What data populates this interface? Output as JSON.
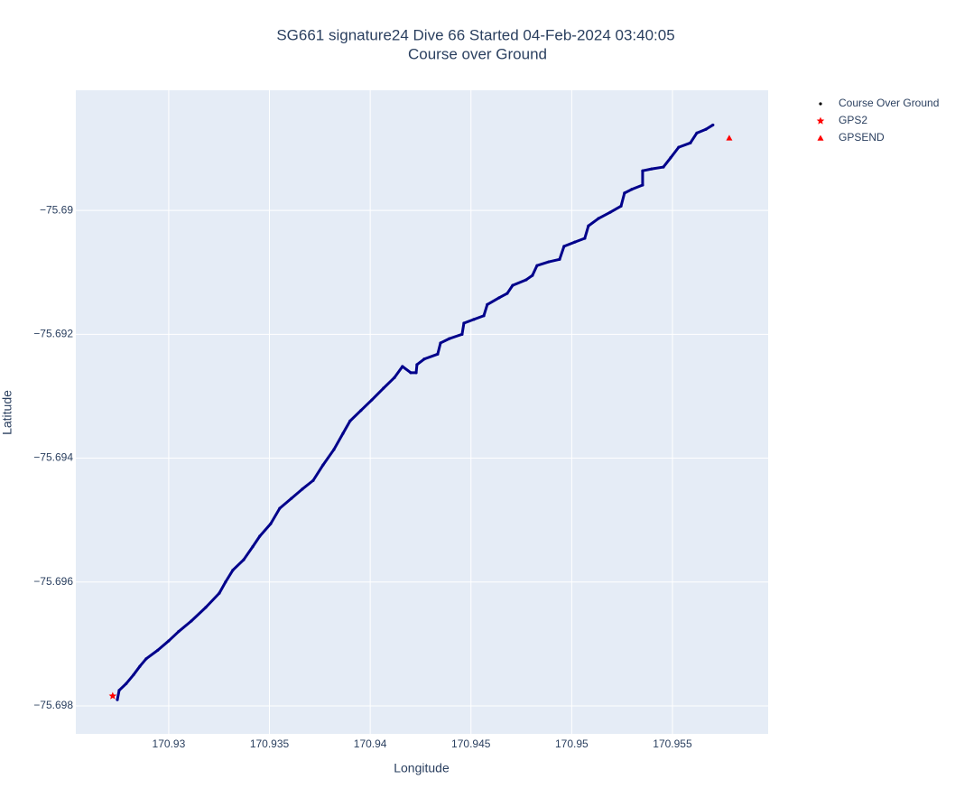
{
  "chart_data": {
    "type": "scatter",
    "title": "SG661 signature24 Dive 66 Started 04-Feb-2024 03:40:05",
    "subtitle": "Course over Ground",
    "x_label": "Longitude",
    "y_label": "Latitude",
    "xlim": [
      170.92539,
      170.95975
    ],
    "ylim": [
      -75.698452,
      -75.68806
    ],
    "xticks": [
      170.93,
      170.935,
      170.94,
      170.945,
      170.95,
      170.955
    ],
    "yticks": [
      {
        "value": -75.69,
        "label": "−75.69"
      },
      {
        "value": -75.692,
        "label": "−75.692"
      },
      {
        "value": -75.694,
        "label": "−75.694"
      },
      {
        "value": -75.696,
        "label": "−75.696"
      },
      {
        "value": -75.698,
        "label": "−75.698"
      }
    ],
    "grid": true,
    "legend": "right",
    "series": [
      {
        "name": "Course Over Ground",
        "color": "#00008b",
        "symbol": "circle",
        "x": [
          170.92745,
          170.92754,
          170.92789,
          170.92825,
          170.92857,
          170.92888,
          170.92946,
          170.93,
          170.93049,
          170.93112,
          170.93184,
          170.93251,
          170.93282,
          170.93318,
          170.93372,
          170.93417,
          170.93452,
          170.93506,
          170.93551,
          170.93609,
          170.93663,
          170.93717,
          170.93766,
          170.9382,
          170.93865,
          170.939,
          170.93954,
          170.94008,
          170.94066,
          170.9412,
          170.9416,
          170.94201,
          170.94228,
          170.94232,
          170.94268,
          170.94335,
          170.94349,
          170.94393,
          170.94456,
          170.94465,
          170.94514,
          170.94564,
          170.94581,
          170.9464,
          170.9468,
          170.94707,
          170.94774,
          170.94805,
          170.94828,
          170.94886,
          170.9494,
          170.94962,
          170.95016,
          170.95065,
          170.95083,
          170.95133,
          170.95191,
          170.95245,
          170.95262,
          170.95298,
          170.95352,
          170.95352,
          170.95397,
          170.95455,
          170.95491,
          170.95531,
          170.95589,
          170.95621,
          170.95666,
          170.95701
        ],
        "y": [
          -75.6979,
          -75.69775,
          -75.69764,
          -75.6975,
          -75.69736,
          -75.69724,
          -75.6971,
          -75.69695,
          -75.6968,
          -75.69663,
          -75.69641,
          -75.69618,
          -75.696,
          -75.69581,
          -75.69564,
          -75.69543,
          -75.69526,
          -75.69506,
          -75.69481,
          -75.69465,
          -75.6945,
          -75.69436,
          -75.69411,
          -75.69386,
          -75.6936,
          -75.6934,
          -75.69323,
          -75.69306,
          -75.69287,
          -75.6927,
          -75.69252,
          -75.69262,
          -75.69262,
          -75.69249,
          -75.6924,
          -75.69232,
          -75.69214,
          -75.69207,
          -75.692,
          -75.69182,
          -75.69176,
          -75.6917,
          -75.69152,
          -75.69141,
          -75.69134,
          -75.69121,
          -75.69112,
          -75.69105,
          -75.69089,
          -75.69083,
          -75.69079,
          -75.69058,
          -75.69051,
          -75.69045,
          -75.69025,
          -75.69013,
          -75.69003,
          -75.68993,
          -75.68972,
          -75.68966,
          -75.68959,
          -75.68936,
          -75.68933,
          -75.6893,
          -75.68915,
          -75.68898,
          -75.68891,
          -75.68875,
          -75.68869,
          -75.68862
        ]
      },
      {
        "name": "GPS2",
        "color": "#ff0000",
        "symbol": "star",
        "x": [
          170.92722
        ],
        "y": [
          -75.69784
        ]
      },
      {
        "name": "GPSEND",
        "color": "#ff0000",
        "symbol": "triangle",
        "x": [
          170.95782
        ],
        "y": [
          -75.68883
        ]
      }
    ]
  }
}
